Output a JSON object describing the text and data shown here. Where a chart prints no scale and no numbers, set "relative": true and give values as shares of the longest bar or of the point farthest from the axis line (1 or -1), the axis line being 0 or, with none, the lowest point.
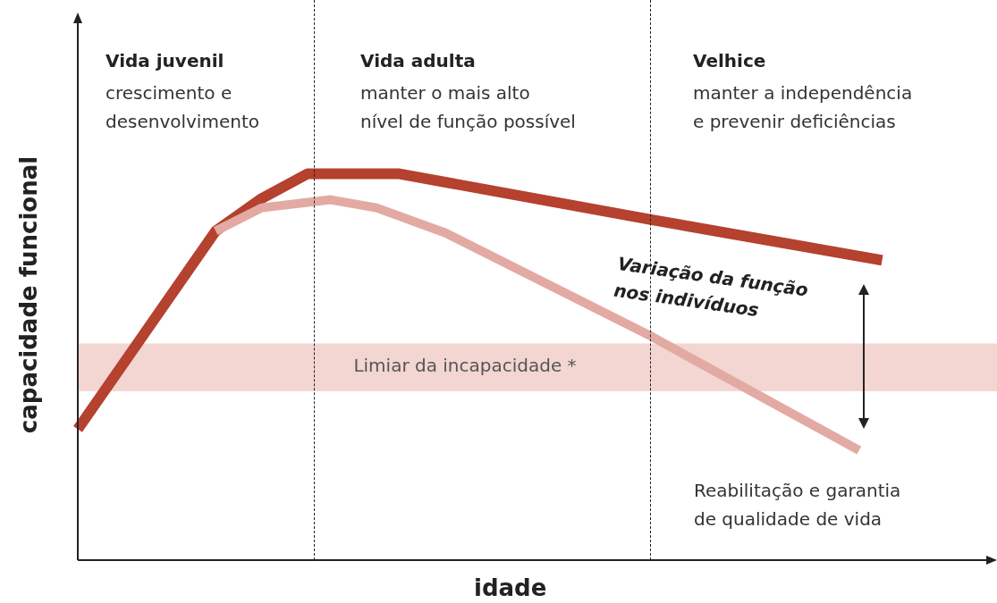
{
  "chart_data": {
    "type": "line",
    "relative": true,
    "xlabel": "idade",
    "ylabel": "capacidade funcional",
    "categories": [
      null,
      null,
      null,
      null,
      null,
      null,
      null,
      null,
      null,
      null,
      null,
      null,
      null,
      null,
      null,
      null,
      null,
      null,
      null,
      null,
      null,
      null,
      null,
      null,
      null,
      null,
      null,
      null,
      null,
      null,
      null,
      null,
      null,
      null,
      null,
      null,
      null,
      null,
      null,
      null,
      null
    ],
    "series": [
      {
        "color": "#e2aaa2",
        "values": [
          null,
          null,
          null,
          null,
          null,
          null,
          0.852,
          null,
          0.912,
          null,
          null,
          0.933,
          null,
          0.912,
          null,
          null,
          0.847,
          null,
          null,
          null,
          null,
          null,
          null,
          null,
          null,
          0.578,
          null,
          null,
          null,
          null,
          null,
          null,
          null,
          null,
          0.284,
          null,
          null,
          null,
          null,
          null,
          null
        ]
      },
      {
        "color": "#b5412f",
        "values": [
          0.339,
          null,
          null,
          null,
          null,
          null,
          0.852,
          null,
          0.936,
          null,
          1,
          null,
          null,
          null,
          1,
          null,
          null,
          null,
          null,
          null,
          null,
          null,
          null,
          null,
          null,
          0.881,
          null,
          null,
          null,
          null,
          null,
          null,
          null,
          null,
          null,
          0.776,
          null,
          null,
          null,
          null,
          null
        ]
      }
    ],
    "bands": [
      {
        "axis": "y",
        "from": 0.437,
        "to": 0.561,
        "label": "Limiar da incapacidade *",
        "color": "#f3d6d1"
      }
    ],
    "annotations": [
      "Vida juvenil",
      "crescimento e\ndesenvolvimento",
      "Vida adulta",
      "manter o mais alto\nnível de função possível",
      "Velhice",
      "manter a independência\ne prevenir deficiências",
      "Variação da função\nnos indivíduos",
      "Reabilitação e garantia\nde qualidade de vida"
    ],
    "legend": false,
    "tick_labels": false,
    "marker": "none"
  }
}
